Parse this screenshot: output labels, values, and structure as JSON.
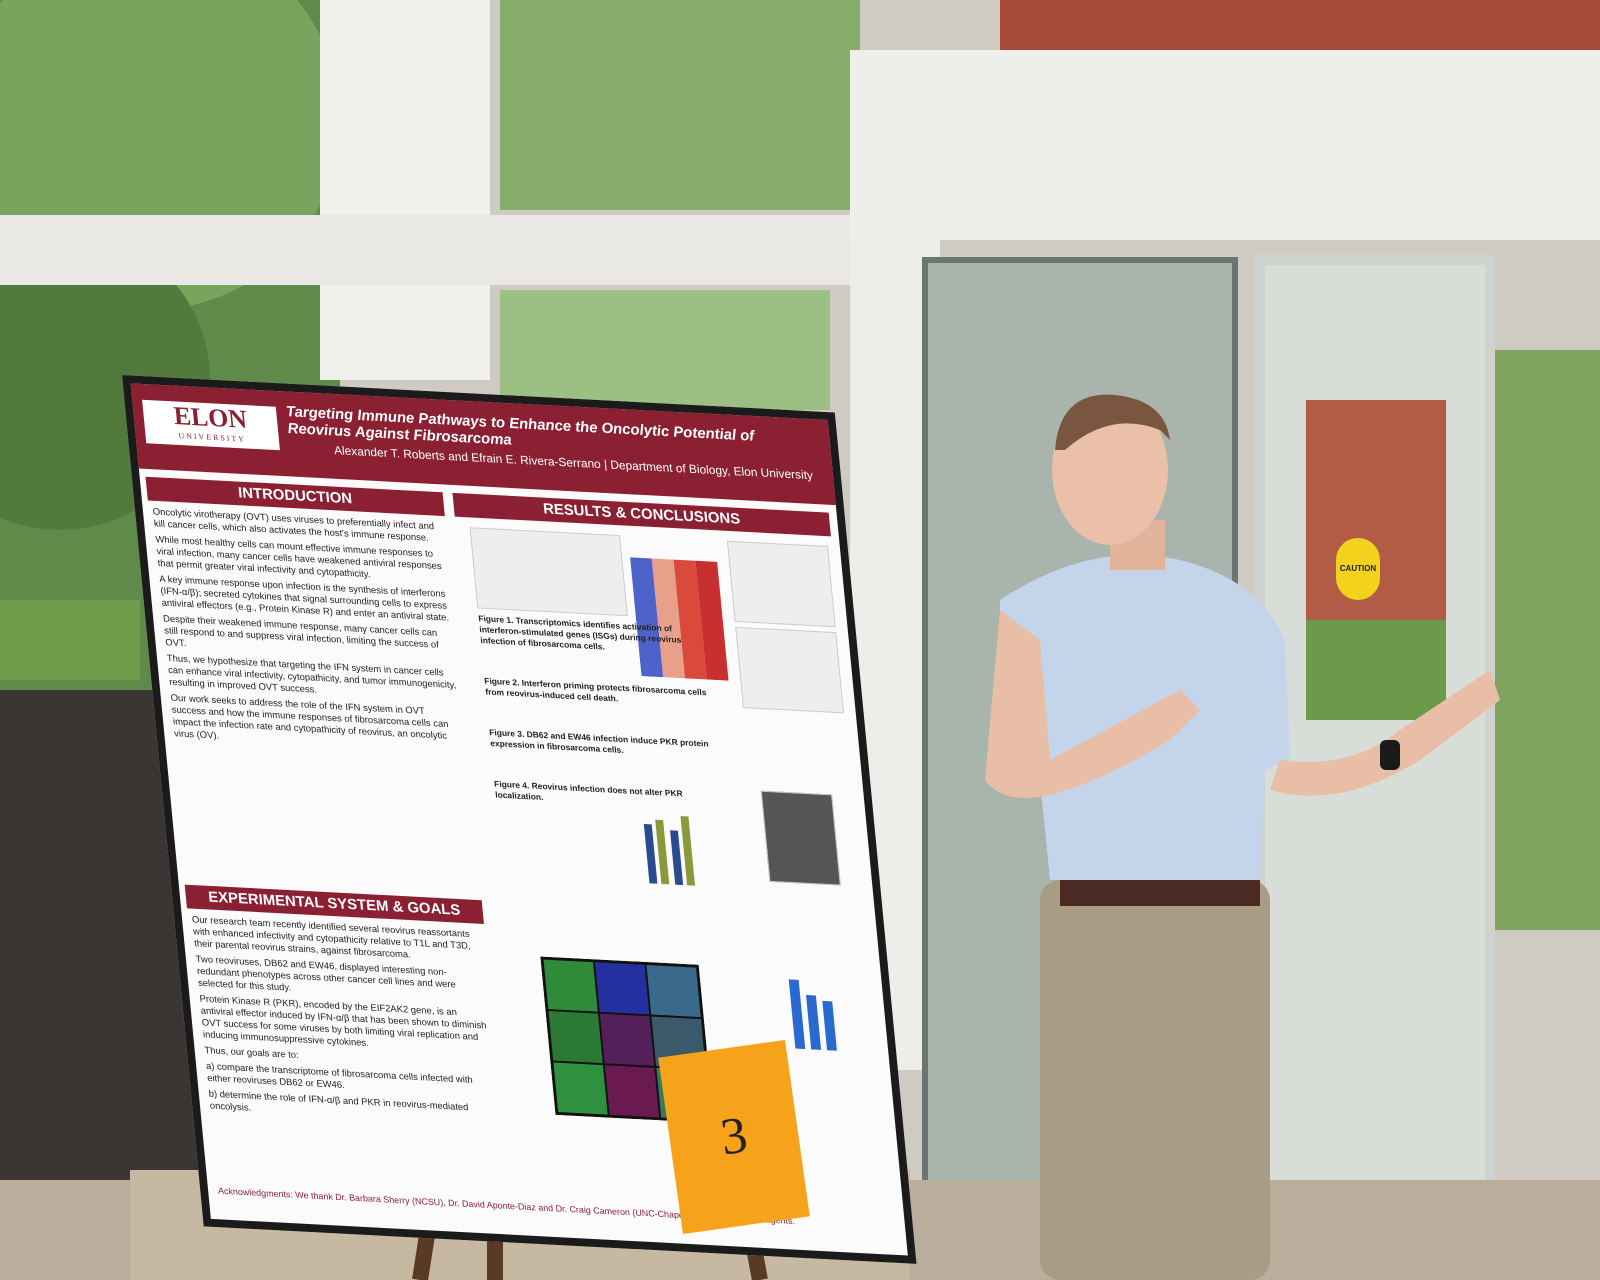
{
  "poster": {
    "logo": {
      "name": "ELON",
      "subtitle": "UNIVERSITY"
    },
    "title": "Targeting Immune Pathways to Enhance the Oncolytic Potential of Reovirus Against Fibrosarcoma",
    "authors": "Alexander T. Roberts and Efrain E. Rivera-Serrano | Department of Biology, Elon University",
    "introduction": {
      "heading": "INTRODUCTION",
      "bullets": [
        "Oncolytic virotherapy (OVT) uses viruses to preferentially infect and kill cancer cells, which also activates the host's immune response.",
        "While most healthy cells can mount effective immune responses to viral infection, many cancer cells have weakened antiviral responses that permit greater viral infectivity and cytopathicity.",
        "A key immune response upon infection is the synthesis of interferons (IFN-α/β); secreted cytokines that signal surrounding cells to express antiviral effectors (e.g., Protein Kinase R) and enter an antiviral state.",
        "Despite their weakened immune response, many cancer cells can still respond to and suppress viral infection, limiting the success of OVT.",
        "Thus, we hypothesize that targeting the IFN system in cancer cells can enhance viral infectivity, cytopathicity, and tumor immunogenicity, resulting in improved OVT success.",
        "Our work seeks to address the role of the IFN system in OVT success and how the immune responses of fibrosarcoma cells can impact the infection rate and cytopathicity of reovirus, an oncolytic virus (OV)."
      ]
    },
    "goals": {
      "heading": "EXPERIMENTAL SYSTEM & GOALS",
      "bullets": [
        "Our research team recently identified several reovirus reassortants with enhanced infectivity and cytopathicity relative to T1L and T3D, their parental reovirus strains, against fibrosarcoma.",
        "Two reoviruses, DB62 and EW46, displayed interesting non-redundant phenotypes across other cancer cell lines and were selected for this study.",
        "Protein Kinase R (PKR), encoded by the EIF2AK2 gene, is an antiviral effector induced by IFN-α/β that has been shown to diminish OVT success for some viruses by both limiting viral replication and inducing immunosuppressive cytokines.",
        "Thus, our goals are to:",
        "a) compare the transcriptome of fibrosarcoma cells infected with either reoviruses DB62 or EW46.",
        "b) determine the role of IFN-α/β and PKR in reovirus-mediated oncolysis."
      ]
    },
    "results": {
      "heading": "RESULTS & CONCLUSIONS",
      "captions": [
        "Figure 1. Transcriptomics identifies activation of interferon-stimulated genes (ISGs) during reovirus infection of fibrosarcoma cells.",
        "Figure 2. Interferon priming protects fibrosarcoma cells from reovirus-induced cell death.",
        "Figure 3. DB62 and EW46 infection induce PKR protein expression in fibrosarcoma cells.",
        "Figure 4. Reovirus infection does not alter PKR localization."
      ]
    },
    "acknowledgments": "Acknowledgments: We thank Dr. Barbara Sherry (NCSU), Dr. David Aponte-Diaz and Dr. Craig Cameron (UNC-Chapel Hill) for providing reagents."
  },
  "easel_sign": "3",
  "door_sign": "CAUTION"
}
